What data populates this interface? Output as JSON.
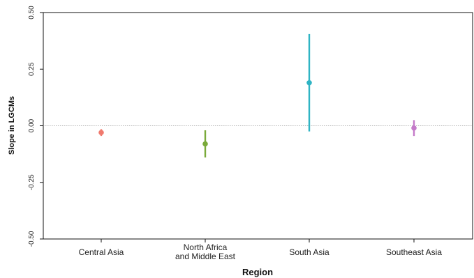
{
  "chart_data": {
    "type": "scatter",
    "title": "",
    "xlabel": "Region",
    "ylabel": "Slope in LGCMs",
    "ylim": [
      -0.5,
      0.5
    ],
    "yticks": [
      0.5,
      0.25,
      0.0,
      -0.25,
      -0.5
    ],
    "ytick_labels": [
      "0.50",
      "0.25",
      "0.00",
      "-0.25",
      "-0.50"
    ],
    "reference_line": 0.0,
    "grid": false,
    "legend": "none",
    "categories": [
      [
        "Central Asia"
      ],
      [
        "North Africa",
        "and Middle East"
      ],
      [
        "South Asia"
      ],
      [
        "Southeast Asia"
      ]
    ],
    "points": [
      {
        "estimate": -0.03,
        "low": -0.045,
        "high": -0.015,
        "color": "#f07a6e"
      },
      {
        "estimate": -0.08,
        "low": -0.14,
        "high": -0.02,
        "color": "#7aaa3a"
      },
      {
        "estimate": 0.19,
        "low": -0.025,
        "high": 0.405,
        "color": "#2fb4c4"
      },
      {
        "estimate": -0.01,
        "low": -0.045,
        "high": 0.025,
        "color": "#c47ac9"
      }
    ]
  }
}
